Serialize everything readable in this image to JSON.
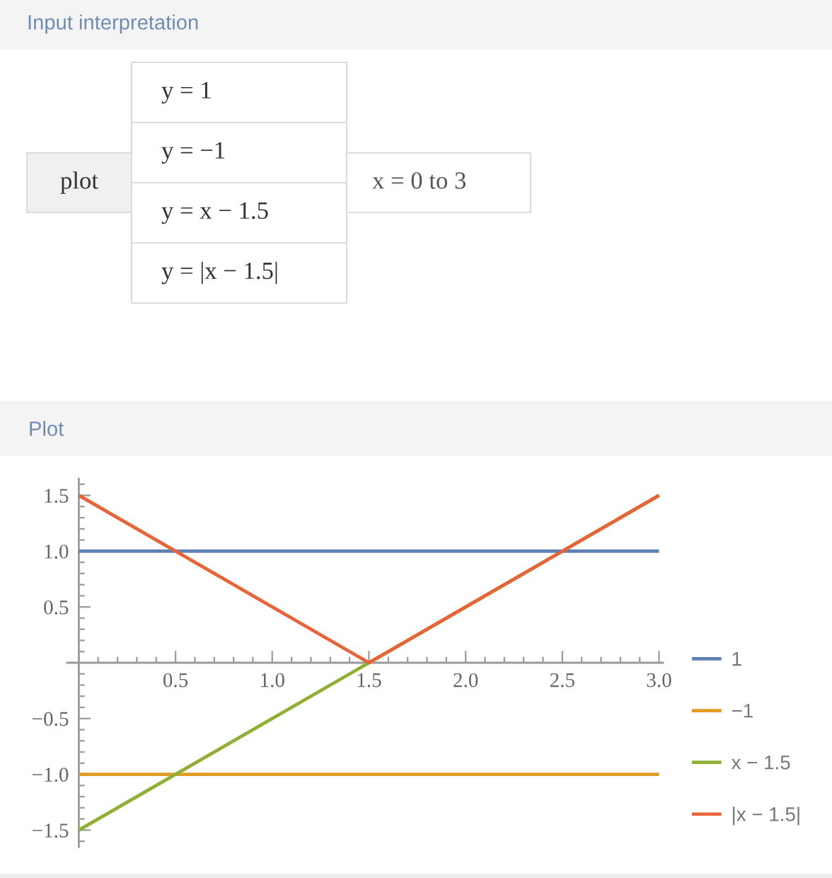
{
  "chart_data": {
    "type": "line",
    "title": "Plot",
    "annotations": [
      "Input interpretation",
      "plot",
      "y = 1",
      "y = −1",
      "y = x − 1.5",
      "y = |x − 1.5|",
      "x = 0 to 3"
    ],
    "series": [
      {
        "name": "1",
        "color": "#5e81b5",
        "x": [
          0,
          3
        ],
        "values": [
          1,
          1
        ]
      },
      {
        "name": "−1",
        "color": "#e19c24",
        "x": [
          0,
          3
        ],
        "values": [
          -1,
          -1
        ]
      },
      {
        "name": "x − 1.5",
        "color": "#8fb032",
        "x": [
          0,
          3
        ],
        "values": [
          -1.5,
          1.5
        ]
      },
      {
        "name": "|x − 1.5|",
        "color": "#eb6235",
        "x": [
          0,
          1.5,
          3
        ],
        "values": [
          1.5,
          0,
          1.5
        ]
      }
    ],
    "xlim": [
      -0.06,
      3.02
    ],
    "ylim": [
      -1.65,
      1.65
    ],
    "xticks": [
      0.5,
      {
        "value": 1,
        "label": "1.0"
      },
      1.5,
      {
        "value": 2,
        "label": "2.0"
      },
      2.5,
      {
        "value": 3,
        "label": "3.0"
      }
    ],
    "yticks": [
      {
        "value": -1.5,
        "label": "−1.5"
      },
      {
        "value": -1,
        "label": "−1.0"
      },
      {
        "value": -0.5,
        "label": "−0.5"
      },
      0.5,
      {
        "value": 1,
        "label": "1.0"
      },
      1.5
    ],
    "legend": "right"
  }
}
